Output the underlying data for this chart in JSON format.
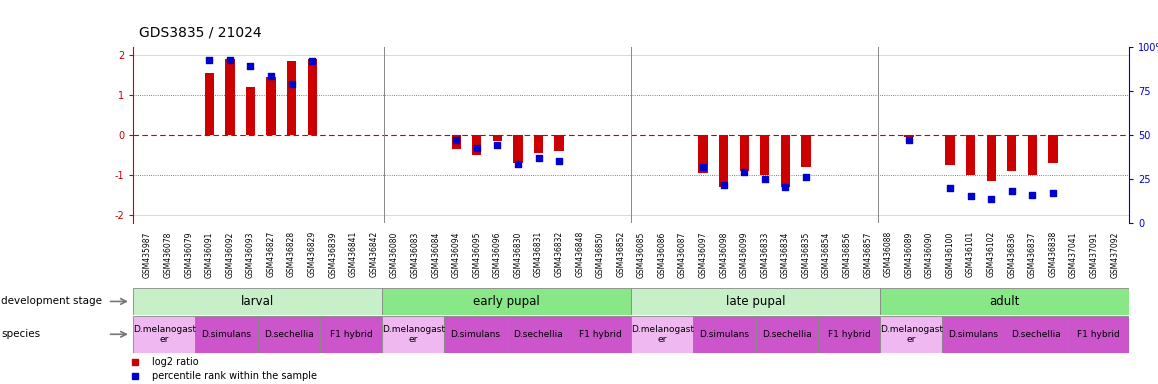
{
  "title": "GDS3835 / 21024",
  "samples": [
    "GSM435987",
    "GSM436078",
    "GSM436079",
    "GSM436091",
    "GSM436092",
    "GSM436093",
    "GSM436827",
    "GSM436828",
    "GSM436829",
    "GSM436839",
    "GSM436841",
    "GSM436842",
    "GSM436080",
    "GSM436083",
    "GSM436084",
    "GSM436094",
    "GSM436095",
    "GSM436096",
    "GSM436830",
    "GSM436831",
    "GSM436832",
    "GSM436848",
    "GSM436850",
    "GSM436852",
    "GSM436085",
    "GSM436086",
    "GSM436087",
    "GSM436097",
    "GSM436098",
    "GSM436099",
    "GSM436833",
    "GSM436834",
    "GSM436835",
    "GSM436854",
    "GSM436856",
    "GSM436857",
    "GSM436088",
    "GSM436089",
    "GSM436090",
    "GSM436100",
    "GSM436101",
    "GSM436102",
    "GSM436836",
    "GSM436837",
    "GSM436838",
    "GSM437041",
    "GSM437091",
    "GSM437092"
  ],
  "log2_ratio": [
    0.0,
    0.0,
    0.0,
    1.55,
    1.9,
    1.2,
    1.45,
    1.85,
    1.9,
    0.0,
    0.0,
    0.0,
    0.0,
    0.0,
    0.0,
    -0.35,
    -0.5,
    -0.15,
    -0.7,
    -0.45,
    -0.4,
    0.0,
    0.0,
    0.0,
    0.0,
    0.0,
    0.0,
    -0.95,
    -1.3,
    -0.9,
    -1.0,
    -1.3,
    -0.8,
    0.0,
    0.0,
    0.0,
    0.0,
    -0.05,
    0.0,
    -0.75,
    -1.0,
    -1.15,
    -0.9,
    -1.0,
    -0.7,
    0.0,
    0.0,
    0.0
  ],
  "percentile": [
    null,
    null,
    null,
    97,
    97,
    93,
    87,
    82,
    96,
    null,
    null,
    null,
    null,
    null,
    null,
    47,
    42,
    44,
    32,
    36,
    34,
    null,
    null,
    null,
    null,
    null,
    null,
    30,
    19,
    27,
    23,
    18,
    24,
    null,
    null,
    null,
    null,
    47,
    null,
    17,
    12,
    10,
    15,
    13,
    14,
    null,
    null,
    null
  ],
  "dev_stages": [
    {
      "label": "larval",
      "start": 0,
      "end": 11,
      "color": "#c8f0c8"
    },
    {
      "label": "early pupal",
      "start": 12,
      "end": 23,
      "color": "#88e888"
    },
    {
      "label": "late pupal",
      "start": 24,
      "end": 35,
      "color": "#c8f0c8"
    },
    {
      "label": "adult",
      "start": 36,
      "end": 47,
      "color": "#88e888"
    }
  ],
  "species_groups": [
    {
      "label": "D.melanogast\ner",
      "start": 0,
      "end": 2,
      "color": "#f0b8f0"
    },
    {
      "label": "D.simulans",
      "start": 3,
      "end": 5,
      "color": "#cc55cc"
    },
    {
      "label": "D.sechellia",
      "start": 6,
      "end": 8,
      "color": "#cc55cc"
    },
    {
      "label": "F1 hybrid",
      "start": 9,
      "end": 11,
      "color": "#cc55cc"
    },
    {
      "label": "D.melanogast\ner",
      "start": 12,
      "end": 14,
      "color": "#f0b8f0"
    },
    {
      "label": "D.simulans",
      "start": 15,
      "end": 17,
      "color": "#cc55cc"
    },
    {
      "label": "D.sechellia",
      "start": 18,
      "end": 20,
      "color": "#cc55cc"
    },
    {
      "label": "F1 hybrid",
      "start": 21,
      "end": 23,
      "color": "#cc55cc"
    },
    {
      "label": "D.melanogast\ner",
      "start": 24,
      "end": 26,
      "color": "#f0b8f0"
    },
    {
      "label": "D.simulans",
      "start": 27,
      "end": 29,
      "color": "#cc55cc"
    },
    {
      "label": "D.sechellia",
      "start": 30,
      "end": 32,
      "color": "#cc55cc"
    },
    {
      "label": "F1 hybrid",
      "start": 33,
      "end": 35,
      "color": "#cc55cc"
    },
    {
      "label": "D.melanogast\ner",
      "start": 36,
      "end": 38,
      "color": "#f0b8f0"
    },
    {
      "label": "D.simulans",
      "start": 39,
      "end": 41,
      "color": "#cc55cc"
    },
    {
      "label": "D.sechellia",
      "start": 42,
      "end": 44,
      "color": "#cc55cc"
    },
    {
      "label": "F1 hybrid",
      "start": 45,
      "end": 47,
      "color": "#cc55cc"
    }
  ],
  "bar_color": "#cc0000",
  "dot_color": "#0000cc",
  "ylim": [
    -2.2,
    2.2
  ],
  "y_ticks_left": [
    -2,
    -1,
    0,
    1,
    2
  ],
  "y_ticks_right": [
    0,
    25,
    50,
    75,
    100
  ],
  "zero_line_color": "#cc0000",
  "dotted_line_color": "#555555",
  "background_color": "#ffffff",
  "title_fontsize": 10,
  "tick_fontsize": 5.5,
  "ytick_fontsize": 7,
  "label_fontsize": 7.5,
  "stage_fontsize": 8.5,
  "species_fontsize": 6.5,
  "legend_fontsize": 7
}
